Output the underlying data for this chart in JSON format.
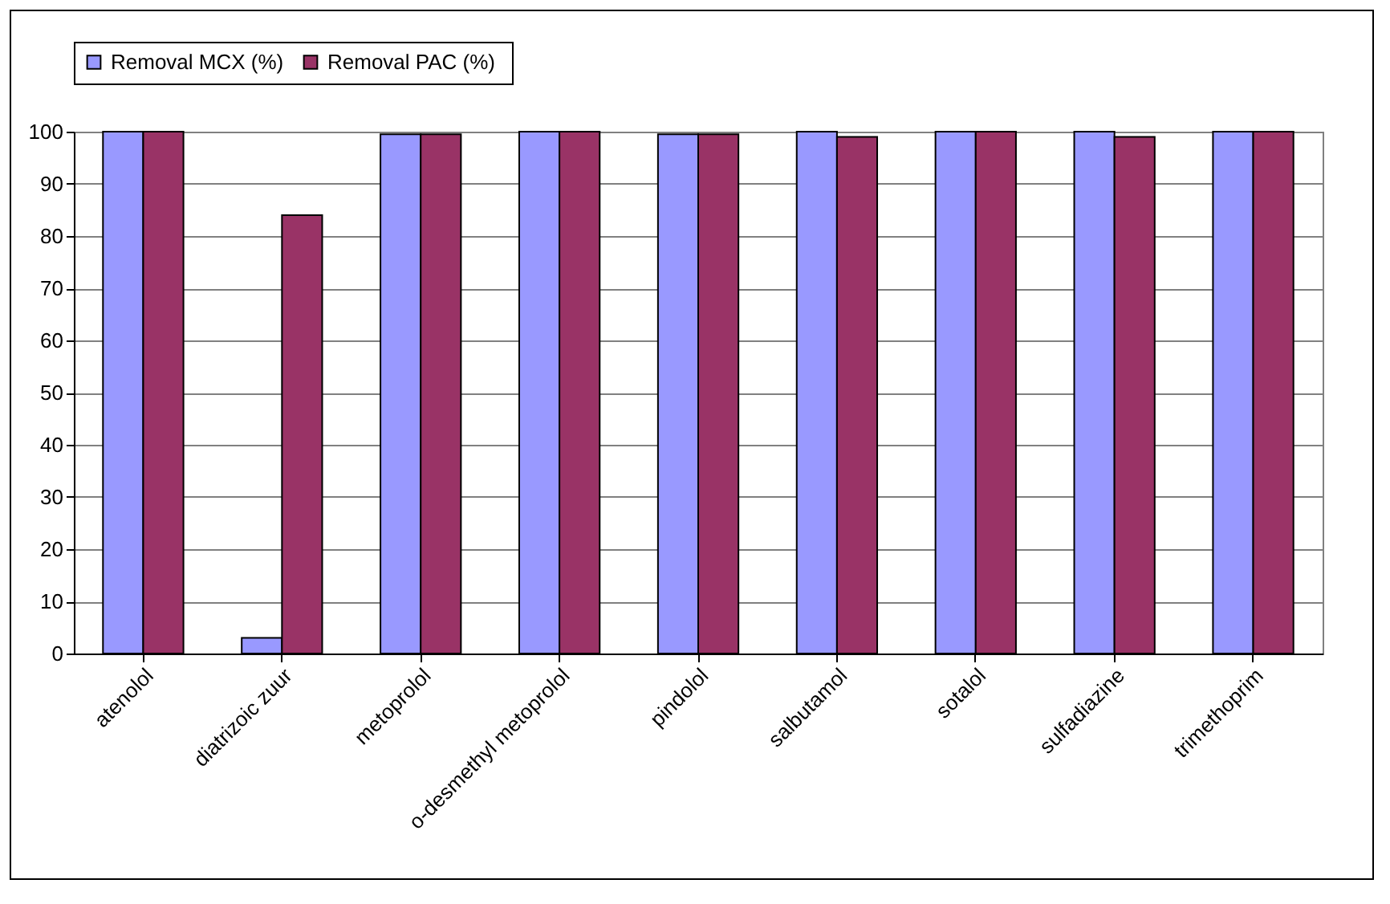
{
  "chart_data": {
    "type": "bar",
    "categories": [
      "atenolol",
      "diatrizoic zuur",
      "metoprolol",
      "o-desmethyl metoprolol",
      "pindolol",
      "salbutamol",
      "sotalol",
      "sulfadiazine",
      "trimethoprim"
    ],
    "series": [
      {
        "name": "Removal MCX (%)",
        "color": "#9999ff",
        "values": [
          100,
          3,
          99.5,
          100,
          99.5,
          100,
          100,
          100,
          100
        ]
      },
      {
        "name": "Removal  PAC (%)",
        "color": "#993366",
        "values": [
          100,
          84,
          99.5,
          100,
          99.5,
          99,
          100,
          99,
          100
        ]
      }
    ],
    "ylim": [
      0,
      100
    ],
    "yticks": [
      0,
      10,
      20,
      30,
      40,
      50,
      60,
      70,
      80,
      90,
      100
    ],
    "grid": "y",
    "legend": "top"
  }
}
